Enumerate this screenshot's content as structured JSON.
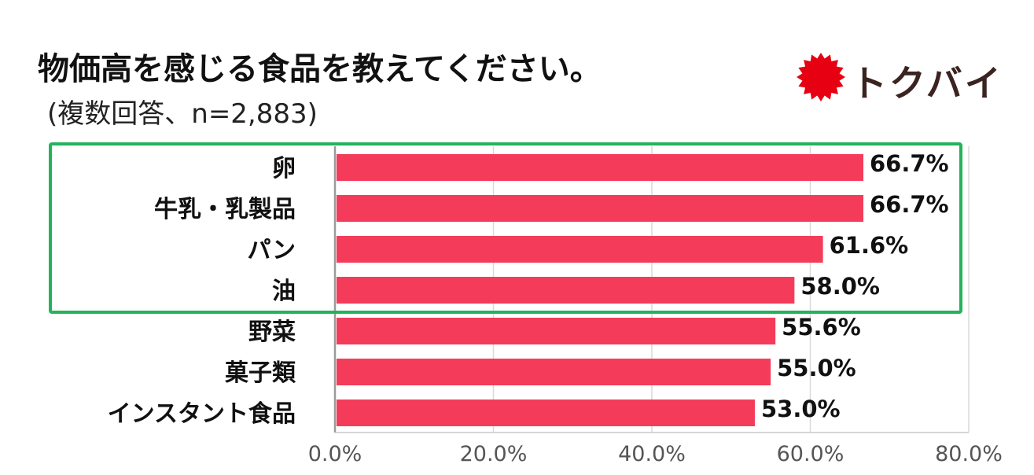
{
  "header": {
    "title": "物価高を感じる食品を教えてください。",
    "subtitle": "(複数回答、n=2,883)"
  },
  "logo": {
    "text": "トクバイ",
    "mark_color": "#e60012",
    "icon": "sun-burst-icon"
  },
  "highlight": {
    "color": "#22b35b",
    "categories_covered": [
      "卵",
      "牛乳・乳製品",
      "パン",
      "油"
    ]
  },
  "chart_data": {
    "type": "bar",
    "orientation": "horizontal",
    "categories": [
      "卵",
      "牛乳・乳製品",
      "パン",
      "油",
      "野菜",
      "菓子類",
      "インスタント食品"
    ],
    "values": [
      66.7,
      66.7,
      61.6,
      58.0,
      55.6,
      55.0,
      53.0
    ],
    "value_labels": [
      "66.7%",
      "66.7%",
      "61.6%",
      "58.0%",
      "55.6%",
      "55.0%",
      "53.0%"
    ],
    "title": "物価高を感じる食品を教えてください。",
    "xlim": [
      0,
      80
    ],
    "x_ticks": [
      0,
      20,
      40,
      60,
      80
    ],
    "x_tick_labels": [
      "0.0%",
      "20.0%",
      "40.0%",
      "60.0%",
      "80.0%"
    ],
    "bar_color": "#f43c5a",
    "grid": true
  }
}
